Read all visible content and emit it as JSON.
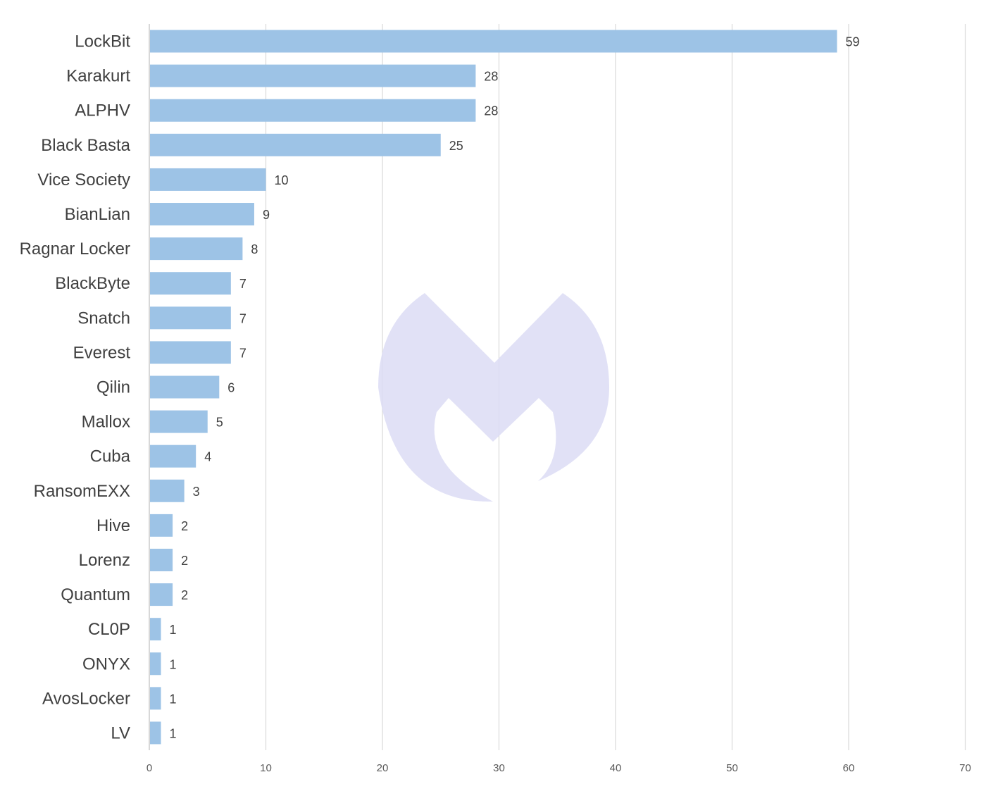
{
  "chart_data": {
    "type": "bar",
    "orientation": "horizontal",
    "categories": [
      "LockBit",
      "Karakurt",
      "ALPHV",
      "Black Basta",
      "Vice Society",
      "BianLian",
      "Ragnar Locker",
      "BlackByte",
      "Snatch",
      "Everest",
      "Qilin",
      "Mallox",
      "Cuba",
      "RansomEXX",
      "Hive",
      "Lorenz",
      "Quantum",
      "CL0P",
      "ONYX",
      "AvosLocker",
      "LV"
    ],
    "values": [
      59,
      28,
      28,
      25,
      10,
      9,
      8,
      7,
      7,
      7,
      6,
      5,
      4,
      3,
      2,
      2,
      2,
      1,
      1,
      1,
      1
    ],
    "value_labels": [
      "59",
      "28",
      "28",
      "25",
      "10",
      "9",
      "8",
      "7",
      "7",
      "7",
      "6",
      "5",
      "4",
      "3",
      "2",
      "2",
      "2",
      "1",
      "1",
      "1",
      "1"
    ],
    "x_ticks": [
      "0",
      "10",
      "20",
      "30",
      "40",
      "50",
      "60",
      "70"
    ],
    "xlim": [
      0,
      70
    ],
    "title": "",
    "xlabel": "",
    "ylabel": "",
    "grid": "vertical",
    "legend": "none",
    "bar_color": "#9dc3e6",
    "watermark": "malwarebytes-logo",
    "watermark_color": "#dcdcf5"
  }
}
